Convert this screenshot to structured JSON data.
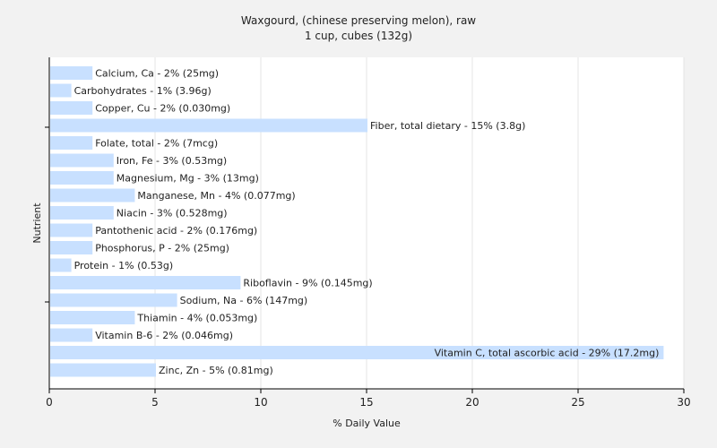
{
  "chart_data": {
    "type": "bar",
    "orientation": "horizontal",
    "title": "Waxgourd, (chinese preserving melon), raw",
    "subtitle": "1 cup, cubes (132g)",
    "xlabel": "% Daily Value",
    "ylabel": "Nutrient",
    "xlim": [
      0,
      30
    ],
    "xticks": [
      0,
      5,
      10,
      15,
      20,
      25,
      30
    ],
    "grid": true,
    "legend": "none",
    "bar_color": "#c8e0ff",
    "categories": [
      "Calcium, Ca",
      "Carbohydrates",
      "Copper, Cu",
      "Fiber, total dietary",
      "Folate, total",
      "Iron, Fe",
      "Magnesium, Mg",
      "Manganese, Mn",
      "Niacin",
      "Pantothenic acid",
      "Phosphorus, P",
      "Protein",
      "Riboflavin",
      "Sodium, Na",
      "Thiamin",
      "Vitamin B-6",
      "Vitamin C, total ascorbic acid",
      "Zinc, Zn"
    ],
    "values": [
      2,
      1,
      2,
      15,
      2,
      3,
      3,
      4,
      3,
      2,
      2,
      1,
      9,
      6,
      4,
      2,
      29,
      5
    ],
    "labels": [
      "Calcium, Ca - 2% (25mg)",
      "Carbohydrates - 1% (3.96g)",
      "Copper, Cu - 2% (0.030mg)",
      "Fiber, total dietary - 15% (3.8g)",
      "Folate, total - 2% (7mcg)",
      "Iron, Fe - 3% (0.53mg)",
      "Magnesium, Mg - 3% (13mg)",
      "Manganese, Mn - 4% (0.077mg)",
      "Niacin - 3% (0.528mg)",
      "Pantothenic acid - 2% (0.176mg)",
      "Phosphorus, P - 2% (25mg)",
      "Protein - 1% (0.53g)",
      "Riboflavin - 9% (0.145mg)",
      "Sodium, Na - 6% (147mg)",
      "Thiamin - 4% (0.053mg)",
      "Vitamin B-6 - 2% (0.046mg)",
      "Vitamin C, total ascorbic acid - 29% (17.2mg)",
      "Zinc, Zn - 5% (0.81mg)"
    ]
  }
}
